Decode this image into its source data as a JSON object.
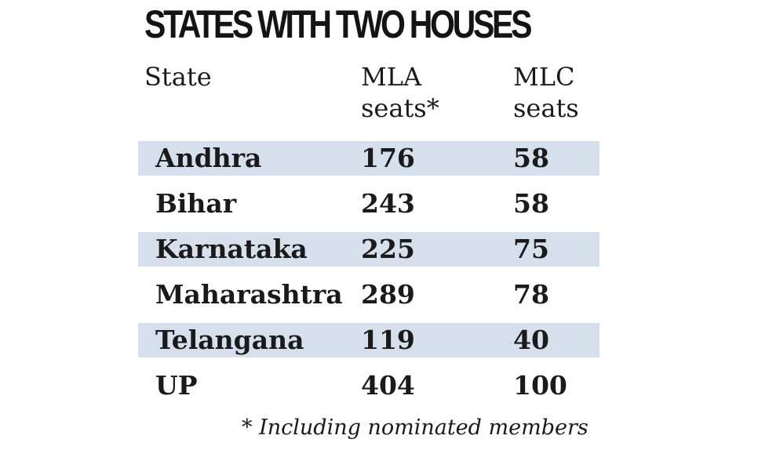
{
  "chart_data": {
    "type": "table",
    "title": "STATES WITH TWO HOUSES",
    "columns": [
      "State",
      "MLA seats*",
      "MLC seats"
    ],
    "rows": [
      {
        "state": "Andhra",
        "mla": 176,
        "mlc": 58
      },
      {
        "state": "Bihar",
        "mla": 243,
        "mlc": 58
      },
      {
        "state": "Karnataka",
        "mla": 225,
        "mlc": 75
      },
      {
        "state": "Maharashtra",
        "mla": 289,
        "mlc": 78
      },
      {
        "state": "Telangana",
        "mla": 119,
        "mlc": 40
      },
      {
        "state": "UP",
        "mla": 404,
        "mlc": 100
      }
    ],
    "footnote": "* Including nominated members",
    "band_color": "#d6e0ed"
  },
  "header": {
    "state": "State",
    "mla": "MLA\nseats*",
    "mlc": "MLC\nseats"
  }
}
